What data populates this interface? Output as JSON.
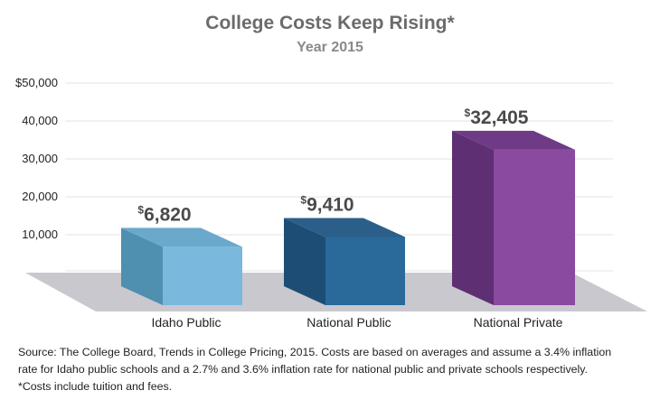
{
  "chart_data": {
    "type": "bar",
    "title": "College Costs Keep Rising*",
    "subtitle": "Year 2015",
    "categories": [
      "Idaho Public",
      "National Public",
      "National Private"
    ],
    "values": [
      6820,
      9410,
      32405
    ],
    "value_labels": [
      "6,820",
      "9,410",
      "32,405"
    ],
    "value_prefix": "$",
    "ylim": [
      0,
      50000
    ],
    "yticks": [
      10000,
      20000,
      30000,
      40000,
      50000
    ],
    "ytick_labels": [
      "10,000",
      "20,000",
      "30,000",
      "40,000",
      "$50,000"
    ],
    "grid": true,
    "legend": "none",
    "bar_colors": [
      {
        "front": "#7ab8de",
        "side": "#4f8fb0",
        "top": "#6aa9cc"
      },
      {
        "front": "#2a6a9b",
        "side": "#1d4d75",
        "top": "#2c5e8a"
      },
      {
        "front": "#8a4a9f",
        "side": "#5e2f73",
        "top": "#6f3a86"
      }
    ],
    "floor_color": "#c9c8ce",
    "value_label_color": "#4a4a4a",
    "grid_color": "#e3e3e3"
  },
  "footnote": {
    "lines": [
      "Source: The College Board, Trends in College Pricing, 2015. Costs are based on averages and assume a 3.4% inflation",
      "rate for Idaho public schools and a 2.7% and 3.6% inflation rate for national public and private schools respectively.",
      "*Costs include tuition and fees."
    ]
  }
}
